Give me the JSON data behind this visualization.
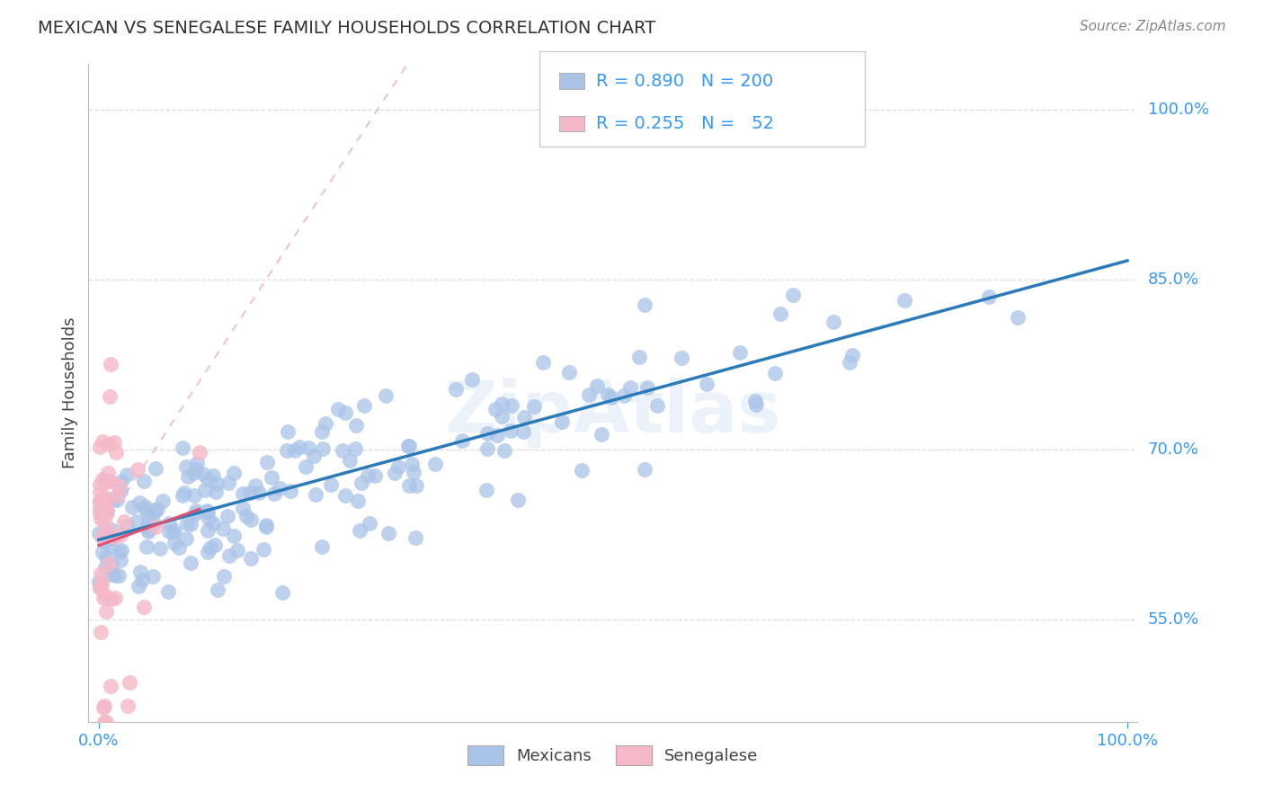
{
  "title": "MEXICAN VS SENEGALESE FAMILY HOUSEHOLDS CORRELATION CHART",
  "source": "Source: ZipAtlas.com",
  "ylabel": "Family Households",
  "ytick_labels": [
    "55.0%",
    "70.0%",
    "85.0%",
    "100.0%"
  ],
  "ytick_values": [
    0.55,
    0.7,
    0.85,
    1.0
  ],
  "legend_mexican_R": "0.890",
  "legend_mexican_N": "200",
  "legend_senegalese_R": "0.255",
  "legend_senegalese_N": "52",
  "legend_label_mexicans": "Mexicans",
  "legend_label_senegalese": "Senegalese",
  "watermark": "ZipAtlas",
  "mexican_color": "#aac4e8",
  "mexican_line_color": "#2b7bba",
  "senegalese_color": "#f5b8c8",
  "senegalese_line_color": "#e05070",
  "title_fontsize": 14,
  "axis_color": "#3399ff",
  "background_color": "#ffffff",
  "gridline_color": "#dddddd",
  "gridline_style_top": "--",
  "gridline_style_rest": "--"
}
